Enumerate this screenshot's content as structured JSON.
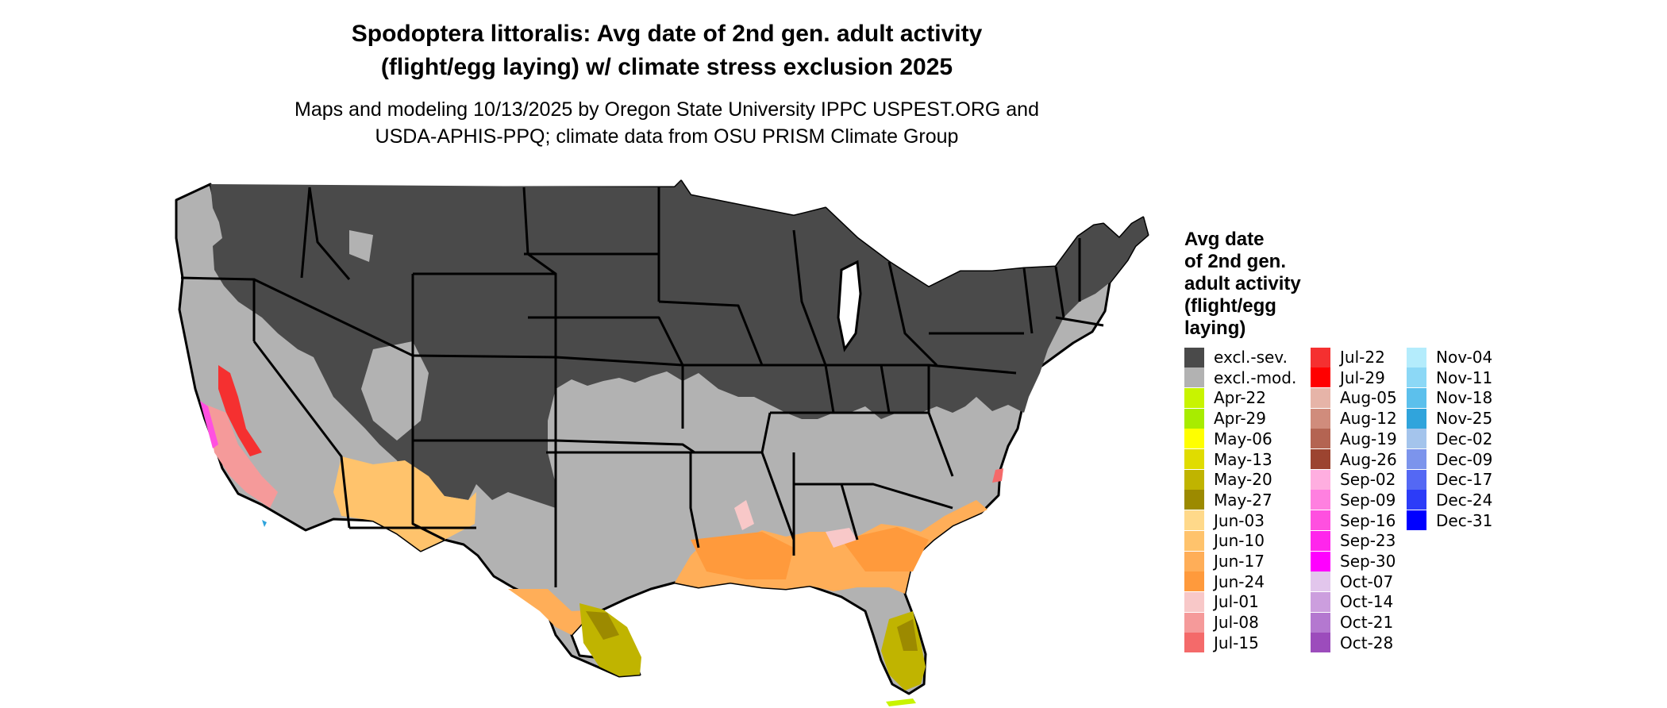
{
  "title_line1": "Spodoptera littoralis: Avg date of 2nd gen. adult activity",
  "title_line2": "(flight/egg laying) w/ climate stress exclusion 2025",
  "subtitle_line1": "Maps and modeling 10/13/2025 by Oregon State University IPPC USPEST.ORG and",
  "subtitle_line2": "USDA-APHIS-PPQ; climate data from OSU PRISM Climate Group",
  "legend": {
    "title": [
      "Avg date",
      "of 2nd gen.",
      "adult activity",
      "(flight/egg",
      "laying)"
    ],
    "columns": [
      [
        {
          "label": "excl.-sev.",
          "color": "#4a4a4a"
        },
        {
          "label": "excl.-mod.",
          "color": "#b2b2b2"
        },
        {
          "label": "Apr-22",
          "color": "#c8f400"
        },
        {
          "label": "Apr-29",
          "color": "#a8ec00"
        },
        {
          "label": "May-06",
          "color": "#ffff00"
        },
        {
          "label": "May-13",
          "color": "#e0dc00"
        },
        {
          "label": "May-20",
          "color": "#c0b400"
        },
        {
          "label": "May-27",
          "color": "#9c8a00"
        },
        {
          "label": "Jun-03",
          "color": "#ffd98a"
        },
        {
          "label": "Jun-10",
          "color": "#ffc36c"
        },
        {
          "label": "Jun-17",
          "color": "#ffae58"
        },
        {
          "label": "Jun-24",
          "color": "#ff9a3c"
        },
        {
          "label": "Jul-01",
          "color": "#f8c8c8"
        },
        {
          "label": "Jul-08",
          "color": "#f59a9a"
        },
        {
          "label": "Jul-15",
          "color": "#f46a6a"
        }
      ],
      [
        {
          "label": "Jul-22",
          "color": "#f53030"
        },
        {
          "label": "Jul-29",
          "color": "#ff0000"
        },
        {
          "label": "Aug-05",
          "color": "#e6b4a8"
        },
        {
          "label": "Aug-12",
          "color": "#d08c7c"
        },
        {
          "label": "Aug-19",
          "color": "#b46452"
        },
        {
          "label": "Aug-26",
          "color": "#9c4430"
        },
        {
          "label": "Sep-02",
          "color": "#ffaee0"
        },
        {
          "label": "Sep-09",
          "color": "#ff80e0"
        },
        {
          "label": "Sep-16",
          "color": "#ff50e0"
        },
        {
          "label": "Sep-23",
          "color": "#ff26ec"
        },
        {
          "label": "Sep-30",
          "color": "#ff00ff"
        },
        {
          "label": "Oct-07",
          "color": "#e2c6ec"
        },
        {
          "label": "Oct-14",
          "color": "#cc9ede"
        },
        {
          "label": "Oct-21",
          "color": "#b478d0"
        },
        {
          "label": "Oct-28",
          "color": "#9c4cbc"
        }
      ],
      [
        {
          "label": "Nov-04",
          "color": "#b4ecfc"
        },
        {
          "label": "Nov-11",
          "color": "#8cd8f6"
        },
        {
          "label": "Nov-18",
          "color": "#5cc0ec"
        },
        {
          "label": "Nov-25",
          "color": "#30a4dc"
        },
        {
          "label": "Dec-02",
          "color": "#a4c4ec"
        },
        {
          "label": "Dec-09",
          "color": "#7c94ec"
        },
        {
          "label": "Dec-17",
          "color": "#5468f4"
        },
        {
          "label": "Dec-24",
          "color": "#2c3cf8"
        },
        {
          "label": "Dec-31",
          "color": "#0000ff"
        }
      ]
    ]
  }
}
